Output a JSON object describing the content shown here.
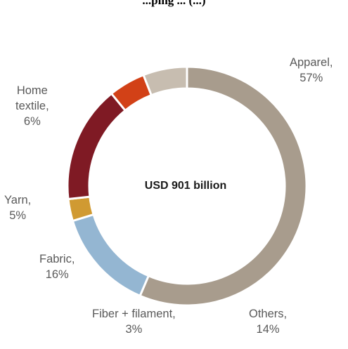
{
  "chart_data": {
    "type": "pie",
    "style": "donut",
    "title": "...ping ... (...)",
    "center_label": "USD 901 billion",
    "slices": [
      {
        "name": "Apparel",
        "value": 57,
        "pct": "57%",
        "color": "#a89c8d"
      },
      {
        "name": "Others",
        "value": 14,
        "pct": "14%",
        "color": "#94b6d2"
      },
      {
        "name": "Fiber + filament",
        "value": 3,
        "pct": "3%",
        "color": "#d09a32"
      },
      {
        "name": "Fabric",
        "value": 16,
        "pct": "16%",
        "color": "#7f1a24"
      },
      {
        "name": "Yarn",
        "value": 5,
        "pct": "5%",
        "color": "#d24117"
      },
      {
        "name": "Home textile",
        "value": 6,
        "pct": "6%",
        "color": "#c7bdb0"
      }
    ]
  }
}
